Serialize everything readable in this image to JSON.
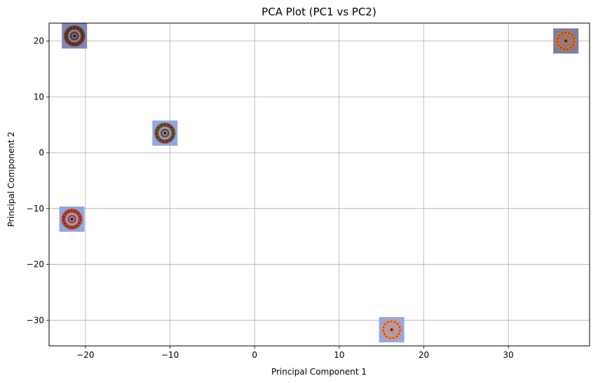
{
  "chart_data": {
    "type": "scatter",
    "title": "PCA Plot (PC1 vs PC2)",
    "xlabel": "Principal Component 1",
    "ylabel": "Principal Component 2",
    "xlim": [
      -24.3,
      39.6
    ],
    "ylim": [
      -34.6,
      23.2
    ],
    "xticks": [
      -20,
      -10,
      0,
      10,
      20,
      30
    ],
    "yticks": [
      -30,
      -20,
      -10,
      0,
      10,
      20
    ],
    "grid": true,
    "points": [
      {
        "x": -21.3,
        "y": 20.9,
        "marker": "snake-thumbnail-icon",
        "bg": "#7d86b8",
        "coil": "#6b3a1f",
        "detail": "#1a1a1a"
      },
      {
        "x": 36.8,
        "y": 20.0,
        "marker": "snake-thumbnail-icon",
        "bg": "#7a7ea6",
        "coil": "#c8703a",
        "detail": "#3a2a2a"
      },
      {
        "x": -10.6,
        "y": 3.5,
        "marker": "snake-thumbnail-icon",
        "bg": "#8fa8e0",
        "coil": "#7a4b2a",
        "detail": "#1a1a1a"
      },
      {
        "x": -21.6,
        "y": -11.9,
        "marker": "snake-thumbnail-icon",
        "bg": "#8fa8e0",
        "coil": "#b8432a",
        "detail": "#1a1a1a"
      },
      {
        "x": 16.2,
        "y": -31.7,
        "marker": "snake-thumbnail-icon",
        "bg": "#8fa8e0",
        "coil": "#e8875e",
        "detail": "#3a2a2a"
      }
    ]
  }
}
